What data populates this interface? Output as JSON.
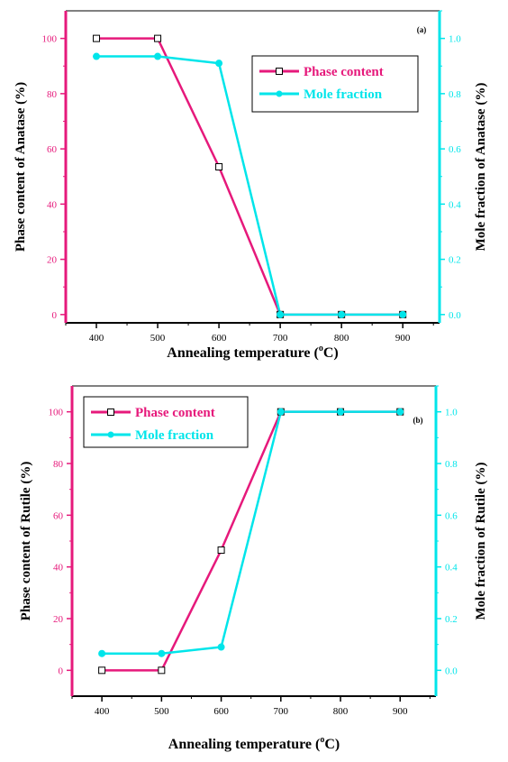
{
  "chart_data": [
    {
      "type": "line",
      "panel_label": "(a)",
      "xlabel": "Annealing temperature (°C)",
      "xlabel_main": "Annealing temperature (",
      "xlabel_sup": "o",
      "xlabel_unit": "C)",
      "ylabel_left": "Phase content of Anatase (%)",
      "ylabel_right": "Mole fraction of Anatase (%)",
      "x": [
        400,
        500,
        600,
        700,
        800,
        900
      ],
      "xticks": [
        400,
        500,
        600,
        700,
        800,
        900
      ],
      "xlim": [
        350,
        960
      ],
      "ylim_left": [
        -3,
        110
      ],
      "ylim_right": [
        -0.03,
        1.1
      ],
      "yticks_left": [
        0,
        20,
        40,
        60,
        80,
        100
      ],
      "yticks_right": [
        "0.0",
        "0.2",
        "0.4",
        "0.6",
        "0.8",
        "1.0"
      ],
      "legend_placement": "top-right",
      "colors": {
        "left_axis": "#e6197b",
        "right_axis": "#00e5ea"
      },
      "series": [
        {
          "name": "Phase content",
          "axis": "left",
          "marker": "open-square",
          "color": "#e6197b",
          "values": [
            100,
            100,
            53.5,
            0,
            0,
            0
          ]
        },
        {
          "name": "Mole fraction",
          "axis": "right",
          "marker": "filled-circle",
          "color": "#00e5ea",
          "values": [
            0.935,
            0.935,
            0.91,
            0,
            0,
            0
          ]
        }
      ]
    },
    {
      "type": "line",
      "panel_label": "(b)",
      "xlabel": "Annealing temperature (°C)",
      "xlabel_main": "Annealing temperature (",
      "xlabel_sup": "o",
      "xlabel_unit": "C)",
      "ylabel_left": "Phase content of Rutile (%)",
      "ylabel_right": "Mole fraction of Rutile (%)",
      "x": [
        400,
        500,
        600,
        700,
        800,
        900
      ],
      "xticks": [
        400,
        500,
        600,
        700,
        800,
        900
      ],
      "xlim": [
        350,
        960
      ],
      "ylim_left": [
        -10,
        110
      ],
      "ylim_right": [
        -0.1,
        1.1
      ],
      "yticks_left": [
        0,
        20,
        40,
        60,
        80,
        100
      ],
      "yticks_right": [
        "0.0",
        "0.2",
        "0.4",
        "0.6",
        "0.8",
        "1.0"
      ],
      "legend_placement": "top-left",
      "colors": {
        "left_axis": "#e6197b",
        "right_axis": "#00e5ea"
      },
      "series": [
        {
          "name": "Phase content",
          "axis": "left",
          "marker": "open-square",
          "color": "#e6197b",
          "values": [
            0,
            0,
            46.5,
            100,
            100,
            100
          ]
        },
        {
          "name": "Mole fraction",
          "axis": "right",
          "marker": "filled-circle",
          "color": "#00e5ea",
          "values": [
            0.065,
            0.065,
            0.09,
            1.0,
            1.0,
            1.0
          ]
        }
      ]
    }
  ]
}
